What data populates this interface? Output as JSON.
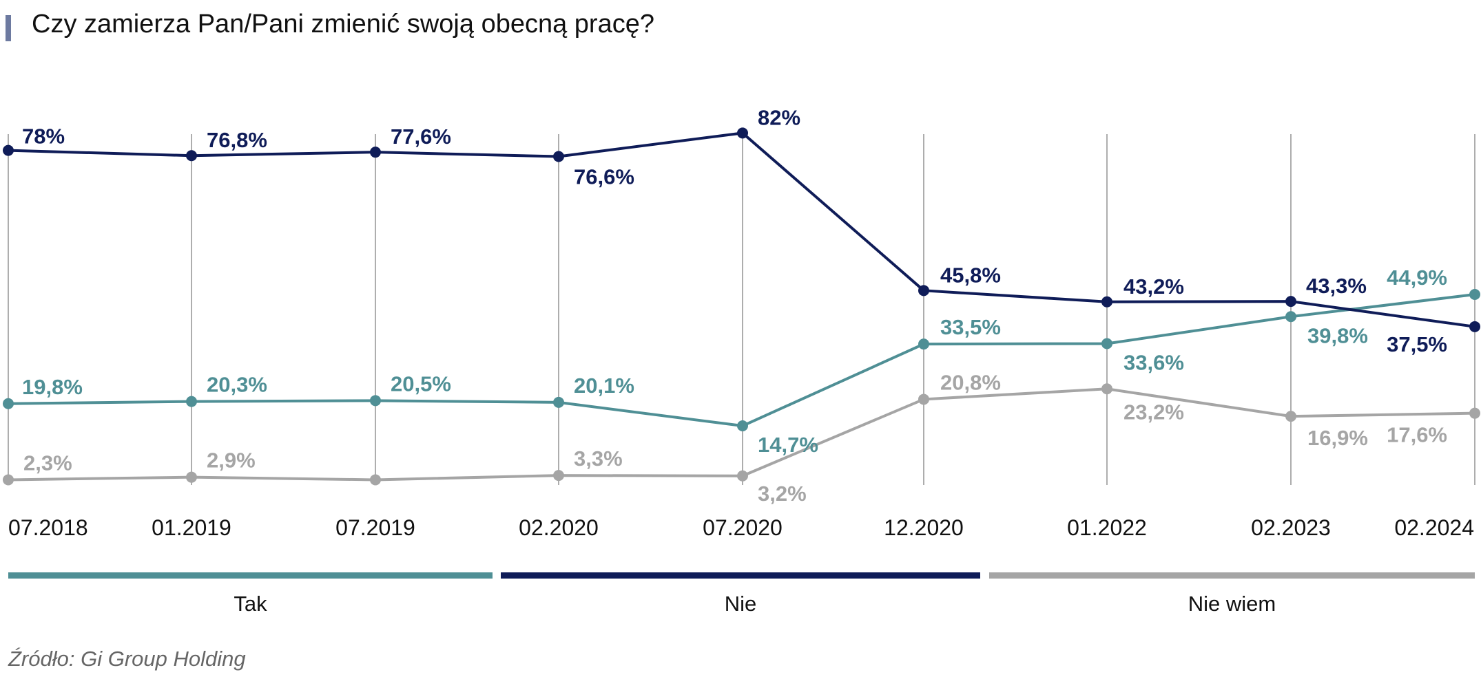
{
  "title": "Czy zamierza Pan/Pani zmienić swoją obecną pracę?",
  "source": "Źródło: Gi Group Holding",
  "colors": {
    "accent_bar": "#6d7aa0",
    "Tak": "#4f8f95",
    "Nie": "#0f1c58",
    "Nie wiem": "#a5a5a5"
  },
  "chart_data": {
    "type": "line",
    "title": "Czy zamierza Pan/Pani zmienić swoją obecną pracę?",
    "x": [
      "07.2018",
      "01.2019",
      "07.2019",
      "02.2020",
      "07.2020",
      "12.2020",
      "01.2022",
      "02.2023",
      "02.2024"
    ],
    "series": [
      {
        "name": "Tak",
        "values": [
          19.8,
          20.3,
          20.5,
          20.1,
          14.7,
          33.5,
          33.6,
          39.8,
          44.9
        ],
        "labels": [
          "19,8%",
          "20,3%",
          "20,5%",
          "20,1%",
          "14,7%",
          "33,5%",
          "33,6%",
          "39,8%",
          "44,9%"
        ]
      },
      {
        "name": "Nie",
        "values": [
          78,
          76.8,
          77.6,
          76.6,
          82,
          45.8,
          43.2,
          43.3,
          37.5
        ],
        "labels": [
          "78%",
          "76,8%",
          "77,6%",
          "76,6%",
          "82%",
          "45,8%",
          "43,2%",
          "43,3%",
          "37,5%"
        ]
      },
      {
        "name": "Nie wiem",
        "values": [
          2.3,
          2.9,
          2.3,
          3.3,
          3.2,
          20.8,
          23.2,
          16.9,
          17.6
        ],
        "labels": [
          "2,3%",
          "2,9%",
          "",
          "3,3%",
          "3,2%",
          "20,8%",
          "23,2%",
          "16,9%",
          "17,6%"
        ]
      }
    ],
    "legend": [
      "Tak",
      "Nie",
      "Nie wiem"
    ],
    "legend_position": "bottom",
    "grid": false,
    "ylim": [
      0,
      85
    ]
  }
}
